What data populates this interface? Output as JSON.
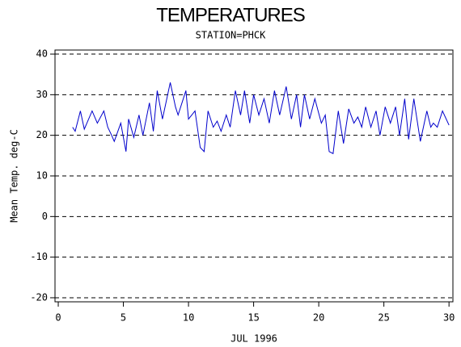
{
  "chart_data": {
    "type": "line",
    "title": "TEMPERATURES",
    "subtitle": "STATION=PHCK",
    "x_label": "JUL 1996",
    "y_label": "Mean Temp. deg-C",
    "xlim": [
      -0.25,
      30.3
    ],
    "ylim": [
      -21,
      41
    ],
    "xticks": [
      0,
      5,
      10,
      15,
      20,
      25,
      30
    ],
    "yticks": [
      -20,
      -10,
      0,
      10,
      20,
      30,
      40
    ],
    "grid": true,
    "series": [
      {
        "name": "Mean Temp",
        "color": "#0000cc",
        "x": [
          1.1,
          1.3,
          1.7,
          2.0,
          2.6,
          3.0,
          3.5,
          3.8,
          4.1,
          4.3,
          4.8,
          5.2,
          5.4,
          5.8,
          6.2,
          6.5,
          7.0,
          7.3,
          7.6,
          8.0,
          8.6,
          9.0,
          9.2,
          9.8,
          10.0,
          10.5,
          10.9,
          11.2,
          11.5,
          11.9,
          12.2,
          12.5,
          12.9,
          13.2,
          13.6,
          14.0,
          14.3,
          14.7,
          15.0,
          15.4,
          15.8,
          16.2,
          16.6,
          17.0,
          17.5,
          17.9,
          18.3,
          18.6,
          18.9,
          19.3,
          19.7,
          20.2,
          20.5,
          20.8,
          21.1,
          21.5,
          21.9,
          22.3,
          22.7,
          23.0,
          23.3,
          23.6,
          24.0,
          24.4,
          24.7,
          25.1,
          25.5,
          25.9,
          26.2,
          26.6,
          26.9,
          27.3,
          27.8,
          28.3,
          28.6,
          28.8,
          29.1,
          29.5,
          30.0
        ],
        "values": [
          22,
          21,
          26,
          21.5,
          26,
          23,
          26,
          22,
          20,
          18.5,
          23,
          16,
          24,
          19.5,
          25,
          20,
          28,
          21,
          31,
          24,
          33,
          27,
          25,
          31,
          24,
          26,
          17,
          16,
          26,
          22,
          23.5,
          21,
          25,
          22,
          31,
          25,
          31,
          23,
          30,
          25,
          29,
          23,
          31,
          25,
          32,
          24,
          30,
          22,
          30,
          24,
          29,
          23,
          25,
          16,
          15.5,
          26,
          18,
          26.5,
          23,
          24.5,
          22,
          27,
          22,
          26,
          20,
          27,
          23,
          27,
          20,
          29,
          19,
          29,
          18.5,
          26,
          22,
          23,
          22,
          26,
          22.5
        ]
      }
    ]
  }
}
